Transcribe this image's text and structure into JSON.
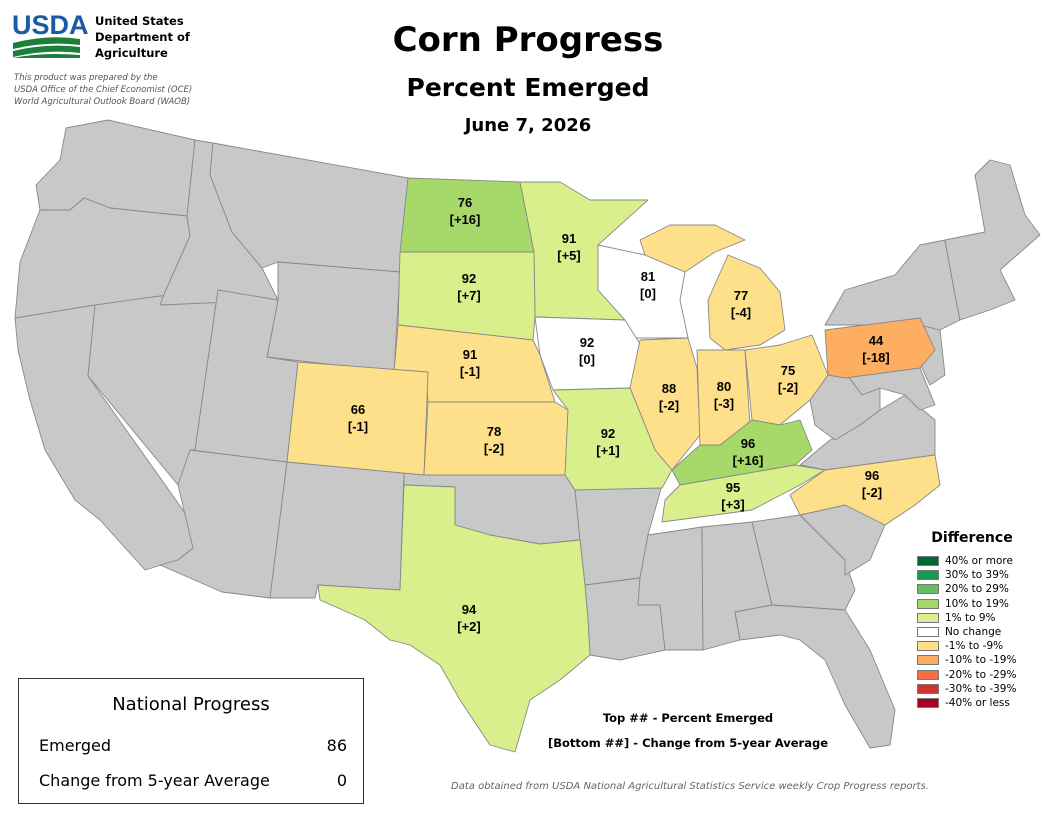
{
  "header": {
    "title": "Corn Progress",
    "subtitle": "Percent Emerged",
    "date": "June 7, 2026"
  },
  "agency": {
    "logo_text": "USDA",
    "name_lines": [
      "United States",
      "Department of",
      "Agriculture"
    ],
    "prepared_by": [
      "This product was prepared by the",
      "USDA Office of the Chief Economist (OCE)",
      "World Agricultural Outlook Board (WAOB)"
    ]
  },
  "colors": {
    "no_data": "#c8c8c8",
    "green_10_19": "#a6d96a",
    "green_1_9": "#d9ef8b",
    "no_change": "#ffffff",
    "orange_1_9": "#fee08b",
    "orange_10_19": "#fdae61"
  },
  "states": [
    {
      "name": "North Dakota",
      "value": "76",
      "diff": "[+16]",
      "color": "#a6d96a"
    },
    {
      "name": "Minnesota",
      "value": "91",
      "diff": "[+5]",
      "color": "#d9ef8b"
    },
    {
      "name": "Wisconsin",
      "value": "81",
      "diff": "[0]",
      "color": "#ffffff"
    },
    {
      "name": "Michigan",
      "value": "77",
      "diff": "[-4]",
      "color": "#fee08b"
    },
    {
      "name": "South Dakota",
      "value": "92",
      "diff": "[+7]",
      "color": "#d9ef8b"
    },
    {
      "name": "Iowa",
      "value": "92",
      "diff": "[0]",
      "color": "#ffffff"
    },
    {
      "name": "Nebraska",
      "value": "91",
      "diff": "[-1]",
      "color": "#fee08b"
    },
    {
      "name": "Pennsylvania",
      "value": "44",
      "diff": "[-18]",
      "color": "#fdae61"
    },
    {
      "name": "Illinois",
      "value": "88",
      "diff": "[-2]",
      "color": "#fee08b"
    },
    {
      "name": "Indiana",
      "value": "80",
      "diff": "[-3]",
      "color": "#fee08b"
    },
    {
      "name": "Ohio",
      "value": "75",
      "diff": "[-2]",
      "color": "#fee08b"
    },
    {
      "name": "Colorado",
      "value": "66",
      "diff": "[-1]",
      "color": "#fee08b"
    },
    {
      "name": "Kansas",
      "value": "78",
      "diff": "[-2]",
      "color": "#fee08b"
    },
    {
      "name": "Missouri",
      "value": "92",
      "diff": "[+1]",
      "color": "#d9ef8b"
    },
    {
      "name": "Kentucky",
      "value": "96",
      "diff": "[+16]",
      "color": "#a6d96a"
    },
    {
      "name": "Tennessee",
      "value": "95",
      "diff": "[+3]",
      "color": "#d9ef8b"
    },
    {
      "name": "North Carolina",
      "value": "96",
      "diff": "[-2]",
      "color": "#fee08b"
    },
    {
      "name": "Texas",
      "value": "94",
      "diff": "[+2]",
      "color": "#d9ef8b"
    }
  ],
  "legend": {
    "title": "Difference",
    "items": [
      {
        "label": "40% or more",
        "color": "#006837"
      },
      {
        "label": "30% to 39%",
        "color": "#1a9850"
      },
      {
        "label": "20% to 29%",
        "color": "#66bd63"
      },
      {
        "label": "10% to 19%",
        "color": "#a6d96a"
      },
      {
        "label": "1% to 9%",
        "color": "#d9ef8b"
      },
      {
        "label": "No change",
        "color": "#ffffff"
      },
      {
        "label": "-1% to -9%",
        "color": "#fee08b"
      },
      {
        "label": "-10% to -19%",
        "color": "#fdae61"
      },
      {
        "label": "-20% to -29%",
        "color": "#f46d43"
      },
      {
        "label": "-30% to -39%",
        "color": "#d73027"
      },
      {
        "label": "-40% or less",
        "color": "#a50026"
      }
    ]
  },
  "national": {
    "title": "National Progress",
    "emerged_label": "Emerged",
    "emerged_value": "86",
    "change_label": "Change from 5-year Average",
    "change_value": "0"
  },
  "key": {
    "top": "Top ## - Percent Emerged",
    "bottom": "[Bottom ##] - Change from 5-year Average"
  },
  "source": "Data obtained from USDA National Agricultural Statistics Service weekly Crop Progress reports."
}
